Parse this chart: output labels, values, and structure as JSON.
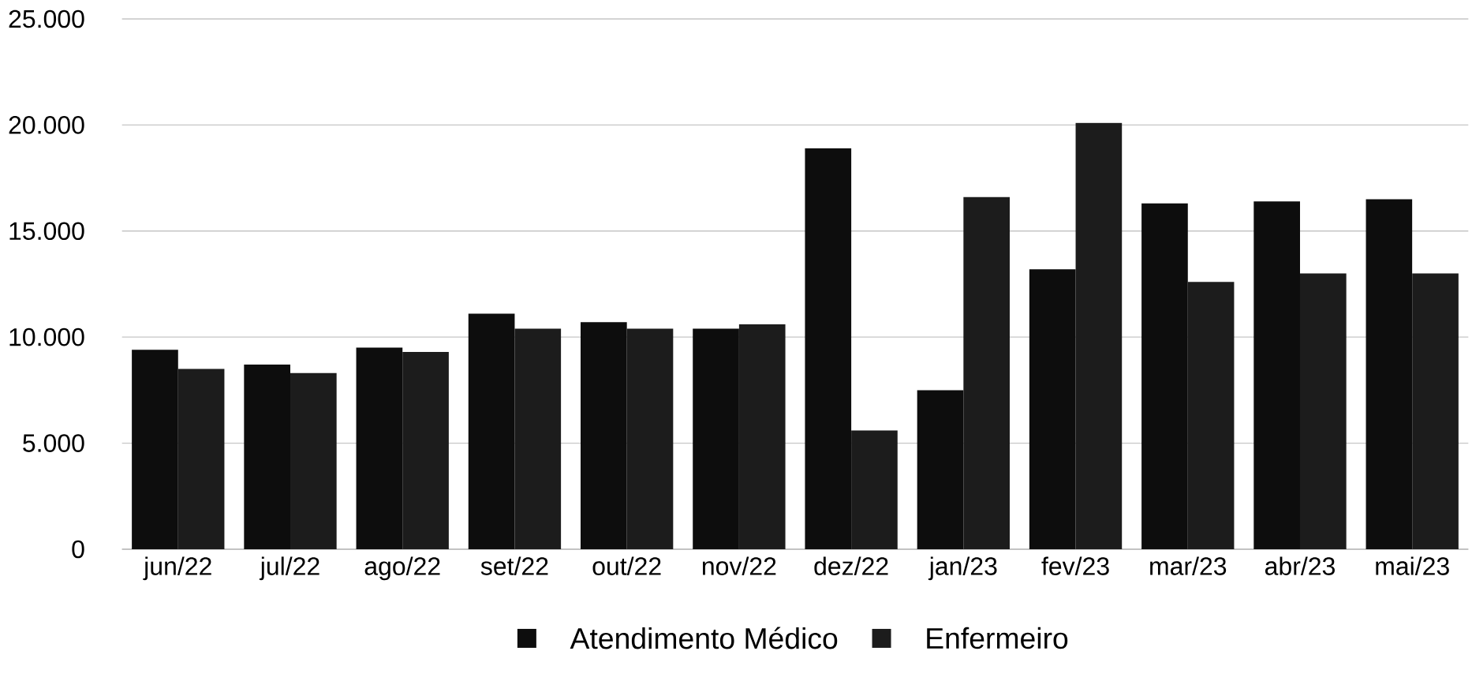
{
  "chart_data": {
    "type": "bar",
    "categories": [
      "jun/22",
      "jul/22",
      "ago/22",
      "set/22",
      "out/22",
      "nov/22",
      "dez/22",
      "jan/23",
      "fev/23",
      "mar/23",
      "abr/23",
      "mai/23"
    ],
    "series": [
      {
        "name": "Atendimento Médico",
        "color": "#0d0d0d",
        "values": [
          9400,
          8700,
          9500,
          11100,
          10700,
          10400,
          18900,
          7500,
          13200,
          16300,
          16400,
          16500
        ]
      },
      {
        "name": "Enfermeiro",
        "color": "#1c1c1c",
        "values": [
          8500,
          8300,
          9300,
          10400,
          10400,
          10600,
          5600,
          16600,
          20100,
          12600,
          13000,
          13000
        ]
      }
    ],
    "ylim": [
      0,
      25000
    ],
    "yticks": [
      {
        "value": 0,
        "label": "0"
      },
      {
        "value": 5000,
        "label": "5.000"
      },
      {
        "value": 10000,
        "label": "10.000"
      },
      {
        "value": 15000,
        "label": "15.000"
      },
      {
        "value": 20000,
        "label": "20.000"
      },
      {
        "value": 25000,
        "label": "25.000"
      }
    ],
    "grid": "y",
    "legend": "bottom"
  }
}
